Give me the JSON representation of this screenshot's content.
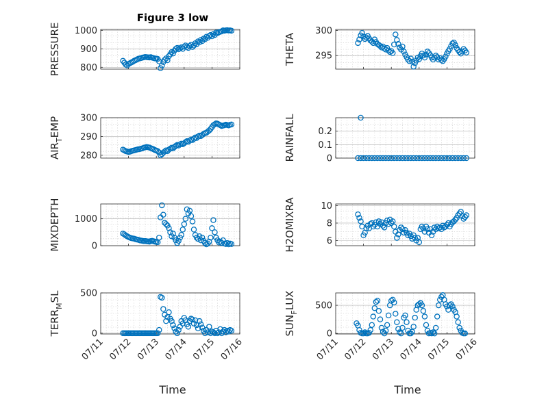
{
  "figure": {
    "title": "Figure 3 low",
    "marker_color": "#0072BD",
    "xlabel": "Time",
    "xticks": [
      "07/11",
      "07/12",
      "07/13",
      "07/14",
      "07/15",
      "07/16"
    ]
  },
  "chart_data": [
    {
      "type": "scatter",
      "ylabel": "PRESSURE",
      "ylabel_sub": "",
      "ylabel_tail": "",
      "xlim": [
        0,
        5
      ],
      "ylim": [
        790,
        1005
      ],
      "yticks": [
        800,
        900,
        1000
      ],
      "yticklabels": [
        "800",
        "900",
        "1000"
      ],
      "grid": true,
      "x": [
        0.8,
        0.85,
        0.9,
        0.95,
        1.0,
        1.05,
        1.1,
        1.15,
        1.2,
        1.25,
        1.3,
        1.35,
        1.4,
        1.45,
        1.5,
        1.55,
        1.6,
        1.65,
        1.7,
        1.75,
        1.8,
        1.85,
        1.9,
        1.95,
        2.0,
        2.05,
        2.1,
        2.15,
        2.2,
        2.25,
        2.3,
        2.35,
        2.4,
        2.45,
        2.5,
        2.55,
        2.6,
        2.65,
        2.7,
        2.75,
        2.8,
        2.85,
        2.9,
        2.95,
        3.0,
        3.05,
        3.1,
        3.15,
        3.2,
        3.25,
        3.3,
        3.35,
        3.4,
        3.45,
        3.5,
        3.55,
        3.6,
        3.65,
        3.7,
        3.75,
        3.8,
        3.85,
        3.9,
        3.95,
        4.0,
        4.05,
        4.1,
        4.15,
        4.2,
        4.25,
        4.3,
        4.35,
        4.4,
        4.45,
        4.5,
        4.55,
        4.6,
        4.65,
        4.7
      ],
      "y": [
        835,
        825,
        815,
        810,
        818,
        822,
        826,
        830,
        835,
        838,
        842,
        846,
        848,
        850,
        852,
        854,
        856,
        855,
        854,
        853,
        855,
        852,
        850,
        848,
        847,
        845,
        832,
        795,
        810,
        828,
        840,
        848,
        838,
        860,
        870,
        882,
        875,
        890,
        900,
        905,
        898,
        902,
        908,
        900,
        912,
        918,
        910,
        905,
        915,
        922,
        910,
        918,
        930,
        925,
        940,
        935,
        948,
        942,
        955,
        952,
        965,
        960,
        970,
        975,
        968,
        980,
        975,
        988,
        985,
        990,
        992,
        995,
        1000,
        998,
        1000,
        1001,
        999,
        1000,
        998
      ]
    },
    {
      "type": "scatter",
      "ylabel": "THETA",
      "ylabel_sub": "",
      "ylabel_tail": "",
      "xlim": [
        0,
        5
      ],
      "ylim": [
        292.3,
        300.2
      ],
      "yticks": [
        295,
        300
      ],
      "yticklabels": [
        "295",
        "300"
      ],
      "grid": true,
      "x": [
        0.8,
        0.85,
        0.9,
        0.95,
        1.0,
        1.05,
        1.1,
        1.15,
        1.2,
        1.25,
        1.3,
        1.35,
        1.4,
        1.45,
        1.5,
        1.55,
        1.6,
        1.65,
        1.7,
        1.75,
        1.8,
        1.85,
        1.9,
        1.95,
        2.0,
        2.05,
        2.1,
        2.15,
        2.2,
        2.25,
        2.3,
        2.35,
        2.4,
        2.45,
        2.5,
        2.55,
        2.6,
        2.65,
        2.7,
        2.75,
        2.8,
        2.85,
        2.9,
        2.95,
        3.0,
        3.05,
        3.1,
        3.15,
        3.2,
        3.25,
        3.3,
        3.35,
        3.4,
        3.45,
        3.5,
        3.55,
        3.6,
        3.65,
        3.7,
        3.75,
        3.8,
        3.85,
        3.9,
        3.95,
        4.0,
        4.05,
        4.1,
        4.15,
        4.2,
        4.25,
        4.3,
        4.35,
        4.4,
        4.45,
        4.5,
        4.55,
        4.6,
        4.65,
        4.7
      ],
      "y": [
        297.5,
        298.2,
        299,
        299.5,
        298.8,
        298.3,
        298.6,
        298.9,
        298.4,
        298,
        297.8,
        297.5,
        298.2,
        297.7,
        297.3,
        297.1,
        296.9,
        296.6,
        296.8,
        296.4,
        296.2,
        296.5,
        296,
        295.7,
        295.9,
        295.5,
        297.2,
        299.2,
        298.1,
        297.3,
        296.6,
        296.2,
        296.8,
        295.8,
        295.2,
        294.7,
        294.2,
        293.9,
        294.4,
        293.8,
        292.8,
        293.5,
        294,
        294.6,
        294.3,
        294.9,
        295.4,
        295,
        294.6,
        295.2,
        295.8,
        295.5,
        295.1,
        294.6,
        294.2,
        294.6,
        295,
        294.7,
        294.2,
        294.5,
        294.1,
        293.9,
        294.3,
        294.8,
        295.4,
        295.9,
        296.3,
        296.9,
        297.4,
        297.6,
        297.1,
        296.5,
        296.1,
        295.7,
        295.4,
        295.8,
        296.3,
        296,
        295.6
      ]
    },
    {
      "type": "scatter",
      "ylabel": "AIR",
      "ylabel_sub": "T",
      "ylabel_tail": "EMP",
      "xlim": [
        0,
        5
      ],
      "ylim": [
        278.5,
        300
      ],
      "yticks": [
        280,
        290,
        300
      ],
      "yticklabels": [
        "280",
        "290",
        "300"
      ],
      "grid": true,
      "x": [
        0.8,
        0.85,
        0.9,
        0.95,
        1.0,
        1.05,
        1.1,
        1.15,
        1.2,
        1.25,
        1.3,
        1.35,
        1.4,
        1.45,
        1.5,
        1.55,
        1.6,
        1.65,
        1.7,
        1.75,
        1.8,
        1.85,
        1.9,
        1.95,
        2.0,
        2.05,
        2.1,
        2.15,
        2.2,
        2.25,
        2.3,
        2.35,
        2.4,
        2.45,
        2.5,
        2.55,
        2.6,
        2.65,
        2.7,
        2.75,
        2.8,
        2.85,
        2.9,
        2.95,
        3.0,
        3.05,
        3.1,
        3.15,
        3.2,
        3.25,
        3.3,
        3.35,
        3.4,
        3.45,
        3.5,
        3.55,
        3.6,
        3.65,
        3.7,
        3.75,
        3.8,
        3.85,
        3.9,
        3.95,
        4.0,
        4.05,
        4.1,
        4.15,
        4.2,
        4.25,
        4.3,
        4.35,
        4.4,
        4.45,
        4.5,
        4.55,
        4.6,
        4.65,
        4.7
      ],
      "y": [
        283,
        282.6,
        282.2,
        282,
        281.8,
        281.9,
        282.2,
        282.4,
        282.6,
        282.8,
        283,
        283.2,
        283.3,
        283.5,
        283.7,
        284,
        284.2,
        284.4,
        284.3,
        284.1,
        283.8,
        283.5,
        283.2,
        282.8,
        282.5,
        282.2,
        281.5,
        280,
        280.6,
        281.4,
        282,
        282.6,
        282.2,
        283,
        283.5,
        284,
        283.7,
        284.4,
        285,
        285.5,
        285.2,
        285.8,
        286.2,
        285.9,
        286.4,
        287,
        287.5,
        287.2,
        287.8,
        288.4,
        288.1,
        288.8,
        289.5,
        289.2,
        290,
        290.5,
        290.2,
        290.8,
        291.4,
        291.8,
        292,
        292.6,
        293.2,
        294,
        295,
        296,
        296.5,
        297,
        296.8,
        296.4,
        296,
        295.6,
        295.8,
        296,
        296.3,
        296.1,
        295.9,
        296.2,
        296.4
      ]
    },
    {
      "type": "scatter",
      "ylabel": "RAINFALL",
      "ylabel_sub": "",
      "ylabel_tail": "",
      "xlim": [
        0,
        5
      ],
      "ylim": [
        0,
        0.3
      ],
      "yticks": [
        0,
        0.1,
        0.2
      ],
      "yticklabels": [
        "0",
        "0.1",
        "0.2"
      ],
      "grid": true,
      "x": [
        0.8,
        0.9,
        1.0,
        1.1,
        1.2,
        1.3,
        1.4,
        1.5,
        1.6,
        1.7,
        1.8,
        1.9,
        2.0,
        2.1,
        2.2,
        2.3,
        2.4,
        2.5,
        2.6,
        2.7,
        2.8,
        2.9,
        3.0,
        3.1,
        3.2,
        3.3,
        3.4,
        3.5,
        3.6,
        3.7,
        3.8,
        3.9,
        4.0,
        4.1,
        4.2,
        4.3,
        4.4,
        4.5,
        4.6,
        4.7,
        0.9
      ],
      "y": [
        0,
        0,
        0,
        0,
        0,
        0,
        0,
        0,
        0,
        0,
        0,
        0,
        0,
        0,
        0,
        0,
        0,
        0,
        0,
        0,
        0,
        0,
        0,
        0,
        0,
        0,
        0,
        0,
        0,
        0,
        0,
        0,
        0,
        0,
        0,
        0,
        0,
        0,
        0,
        0,
        0.3
      ]
    },
    {
      "type": "scatter",
      "ylabel": "MIXDEPTH",
      "ylabel_sub": "",
      "ylabel_tail": "",
      "xlim": [
        0,
        5
      ],
      "ylim": [
        0,
        1550
      ],
      "yticks": [
        0,
        1000
      ],
      "yticklabels": [
        "0",
        "1000"
      ],
      "grid": true,
      "x": [
        0.8,
        0.85,
        0.9,
        0.95,
        1.0,
        1.05,
        1.1,
        1.15,
        1.2,
        1.25,
        1.3,
        1.35,
        1.4,
        1.45,
        1.5,
        1.55,
        1.6,
        1.65,
        1.7,
        1.75,
        1.8,
        1.85,
        1.9,
        1.95,
        2.0,
        2.05,
        2.1,
        2.15,
        2.2,
        2.25,
        2.3,
        2.35,
        2.4,
        2.45,
        2.5,
        2.55,
        2.6,
        2.65,
        2.7,
        2.75,
        2.8,
        2.85,
        2.9,
        2.95,
        3.0,
        3.05,
        3.1,
        3.15,
        3.2,
        3.25,
        3.3,
        3.35,
        3.4,
        3.45,
        3.5,
        3.55,
        3.6,
        3.65,
        3.7,
        3.75,
        3.8,
        3.85,
        3.9,
        3.95,
        4.0,
        4.05,
        4.1,
        4.15,
        4.2,
        4.25,
        4.3,
        4.35,
        4.4,
        4.45,
        4.5,
        4.55,
        4.6,
        4.65,
        4.7
      ],
      "y": [
        450,
        420,
        380,
        350,
        320,
        300,
        280,
        270,
        260,
        240,
        230,
        220,
        200,
        190,
        180,
        170,
        175,
        165,
        160,
        150,
        170,
        180,
        165,
        150,
        140,
        130,
        300,
        1050,
        1500,
        1150,
        850,
        800,
        750,
        650,
        500,
        350,
        450,
        300,
        200,
        100,
        180,
        300,
        400,
        600,
        800,
        1000,
        1350,
        1200,
        1300,
        1100,
        900,
        600,
        400,
        300,
        250,
        350,
        200,
        300,
        180,
        100,
        50,
        80,
        150,
        300,
        650,
        950,
        500,
        300,
        200,
        120,
        150,
        100,
        200,
        80,
        60,
        100,
        50,
        80,
        60
      ]
    },
    {
      "type": "scatter",
      "ylabel": "H2OMIXRA",
      "ylabel_sub": "",
      "ylabel_tail": "",
      "xlim": [
        0,
        5
      ],
      "ylim": [
        5.4,
        10.2
      ],
      "yticks": [
        6,
        8,
        10
      ],
      "yticklabels": [
        "6",
        "8",
        "10"
      ],
      "grid": true,
      "x": [
        0.8,
        0.85,
        0.9,
        0.95,
        1.0,
        1.05,
        1.1,
        1.15,
        1.2,
        1.25,
        1.3,
        1.35,
        1.4,
        1.45,
        1.5,
        1.55,
        1.6,
        1.65,
        1.7,
        1.75,
        1.8,
        1.85,
        1.9,
        1.95,
        2.0,
        2.05,
        2.1,
        2.15,
        2.2,
        2.25,
        2.3,
        2.35,
        2.4,
        2.45,
        2.5,
        2.55,
        2.6,
        2.65,
        2.7,
        2.75,
        2.8,
        2.85,
        2.9,
        2.95,
        3.0,
        3.05,
        3.1,
        3.15,
        3.2,
        3.25,
        3.3,
        3.35,
        3.4,
        3.45,
        3.5,
        3.55,
        3.6,
        3.65,
        3.7,
        3.75,
        3.8,
        3.85,
        3.9,
        3.95,
        4.0,
        4.05,
        4.1,
        4.15,
        4.2,
        4.25,
        4.3,
        4.35,
        4.4,
        4.45,
        4.5,
        4.55,
        4.6,
        4.65,
        4.7
      ],
      "y": [
        9,
        8.6,
        8.2,
        7.6,
        6.6,
        6.9,
        7.4,
        7.7,
        7.4,
        7.9,
        8,
        7.6,
        7.8,
        8.1,
        7.6,
        8.2,
        7.9,
        8.1,
        7.7,
        7.5,
        8,
        8.3,
        7.9,
        8.4,
        8,
        8.2,
        7.6,
        7,
        6.3,
        6.7,
        7.2,
        7.5,
        7.3,
        6.9,
        7.2,
        6.9,
        6.6,
        6.8,
        6.5,
        6.2,
        6.6,
        6.3,
        6,
        6.3,
        5.8,
        7.3,
        7.6,
        7.4,
        7,
        7.6,
        7.3,
        6.9,
        7.3,
        6.6,
        7,
        7.5,
        7.3,
        7.6,
        7.4,
        7.5,
        7.3,
        7.7,
        7.5,
        7.6,
        7.8,
        8,
        7.6,
        7.9,
        8.1,
        8.2,
        8.4,
        8.6,
        8.9,
        9.1,
        9.3,
        8.8,
        8.5,
        8.7,
        8.9
      ]
    },
    {
      "type": "scatter",
      "ylabel": "TERR",
      "ylabel_sub": "M",
      "ylabel_tail": "SL",
      "xlim": [
        0,
        5
      ],
      "ylim": [
        -10,
        500
      ],
      "yticks": [
        0,
        500
      ],
      "yticklabels": [
        "0",
        "500"
      ],
      "grid": true,
      "x": [
        0.8,
        0.85,
        0.9,
        0.95,
        1.0,
        1.05,
        1.1,
        1.15,
        1.2,
        1.25,
        1.3,
        1.35,
        1.4,
        1.45,
        1.5,
        1.55,
        1.6,
        1.65,
        1.7,
        1.75,
        1.8,
        1.85,
        1.9,
        1.95,
        2.0,
        2.05,
        2.1,
        2.15,
        2.2,
        2.25,
        2.3,
        2.35,
        2.4,
        2.45,
        2.5,
        2.55,
        2.6,
        2.65,
        2.7,
        2.75,
        2.8,
        2.85,
        2.9,
        2.95,
        3.0,
        3.05,
        3.1,
        3.15,
        3.2,
        3.25,
        3.3,
        3.35,
        3.4,
        3.45,
        3.5,
        3.55,
        3.6,
        3.65,
        3.7,
        3.75,
        3.8,
        3.85,
        3.9,
        3.95,
        4.0,
        4.05,
        4.1,
        4.15,
        4.2,
        4.25,
        4.3,
        4.35,
        4.4,
        4.45,
        4.5,
        4.55,
        4.6,
        4.65,
        4.7
      ],
      "y": [
        0,
        0,
        0,
        0,
        0,
        0,
        0,
        0,
        0,
        0,
        0,
        0,
        0,
        0,
        0,
        0,
        0,
        0,
        0,
        0,
        0,
        0,
        0,
        0,
        0,
        0,
        40,
        450,
        440,
        300,
        230,
        150,
        200,
        260,
        180,
        150,
        100,
        60,
        20,
        0,
        40,
        80,
        150,
        120,
        190,
        160,
        110,
        80,
        150,
        180,
        170,
        120,
        160,
        100,
        60,
        150,
        110,
        70,
        30,
        0,
        40,
        10,
        80,
        0,
        20,
        10,
        0,
        30,
        0,
        10,
        50,
        0,
        20,
        40,
        10,
        30,
        20,
        40,
        30
      ]
    },
    {
      "type": "scatter",
      "ylabel": "SUN",
      "ylabel_sub": "F",
      "ylabel_tail": "LUX",
      "xlim": [
        0,
        5
      ],
      "ylim": [
        -10,
        720
      ],
      "yticks": [
        0,
        500
      ],
      "yticklabels": [
        "0",
        "500"
      ],
      "grid": true,
      "x": [
        0.75,
        0.8,
        0.85,
        0.9,
        0.95,
        1.0,
        1.05,
        1.1,
        1.15,
        1.2,
        1.25,
        1.3,
        1.35,
        1.4,
        1.45,
        1.5,
        1.55,
        1.6,
        1.65,
        1.7,
        1.75,
        1.8,
        1.85,
        1.9,
        1.95,
        2.0,
        2.05,
        2.1,
        2.15,
        2.2,
        2.25,
        2.3,
        2.35,
        2.4,
        2.45,
        2.5,
        2.55,
        2.6,
        2.65,
        2.7,
        2.75,
        2.8,
        2.85,
        2.9,
        2.95,
        3.0,
        3.05,
        3.1,
        3.15,
        3.2,
        3.25,
        3.3,
        3.35,
        3.4,
        3.45,
        3.5,
        3.55,
        3.6,
        3.65,
        3.7,
        3.75,
        3.8,
        3.85,
        3.9,
        3.95,
        4.0,
        4.05,
        4.1,
        4.15,
        4.2,
        4.25,
        4.3,
        4.35,
        4.4,
        4.45,
        4.5,
        4.55,
        4.6,
        4.65
      ],
      "y": [
        180,
        140,
        60,
        10,
        0,
        0,
        20,
        0,
        0,
        10,
        60,
        150,
        300,
        450,
        560,
        580,
        400,
        250,
        100,
        30,
        0,
        50,
        150,
        320,
        500,
        580,
        600,
        550,
        350,
        200,
        80,
        20,
        0,
        100,
        280,
        320,
        200,
        50,
        0,
        0,
        30,
        120,
        280,
        420,
        500,
        520,
        540,
        500,
        400,
        300,
        150,
        50,
        0,
        10,
        0,
        20,
        0,
        100,
        300,
        500,
        600,
        650,
        680,
        600,
        520,
        480,
        420,
        500,
        520,
        480,
        420,
        380,
        300,
        200,
        100,
        50,
        10,
        0,
        0
      ]
    }
  ]
}
